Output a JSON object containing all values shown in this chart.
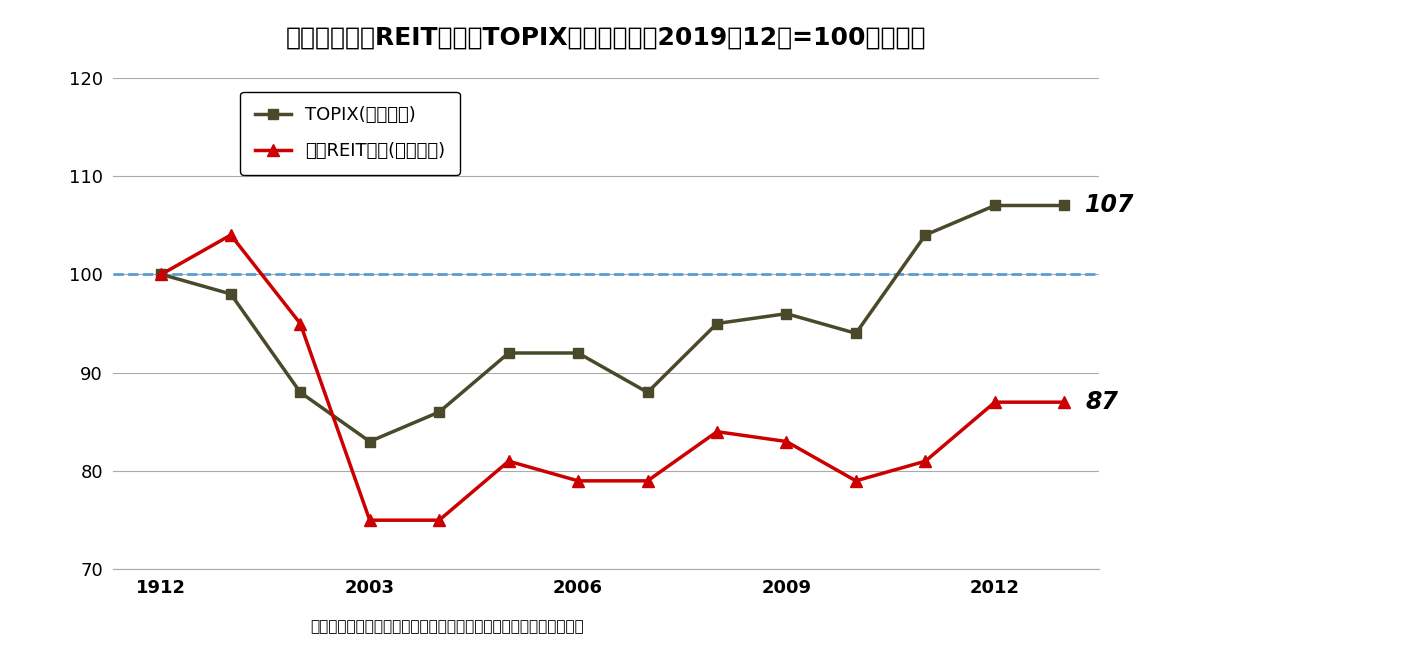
{
  "title": "図表１：東証REIT指数とTOPIX（配当込み、2019年12末=100、月次）",
  "topix_x": [
    2000,
    2001,
    2002,
    2003,
    2004,
    2005,
    2006,
    2007,
    2008,
    2009,
    2010,
    2011,
    2012,
    2013
  ],
  "topix_y": [
    100,
    98,
    88,
    83,
    86,
    92,
    92,
    88,
    95,
    96,
    94,
    104,
    107,
    107
  ],
  "reit_x": [
    2000,
    2001,
    2002,
    2003,
    2004,
    2005,
    2006,
    2007,
    2008,
    2009,
    2010,
    2011,
    2012,
    2013
  ],
  "reit_y": [
    100,
    104,
    95,
    75,
    75,
    81,
    79,
    79,
    84,
    83,
    79,
    81,
    87,
    87
  ],
  "topix_color": "#4a4a2a",
  "reit_color": "#cc0000",
  "dashed_line_color": "#5b9bd5",
  "dashed_line_y": 100,
  "arrow_color": "#1f4e79",
  "xtick_positions": [
    2000,
    2003,
    2006,
    2009,
    2012
  ],
  "xtick_labels": [
    "1912",
    "2003",
    "2006",
    "2009",
    "2012"
  ],
  "ylim": [
    70,
    120
  ],
  "yticks": [
    70,
    80,
    90,
    100,
    110,
    120
  ],
  "topix_end_label": "107",
  "reit_end_label": "87",
  "legend_topix": "TOPIX(配当込み)",
  "legend_reit": "東証REIT指数(配当込み)",
  "source_text": "（出所）東京証券取引所のデータを基にニッセイ基礎研究所が作成",
  "bg_color": "#ffffff",
  "grid_color": "#aaaaaa"
}
